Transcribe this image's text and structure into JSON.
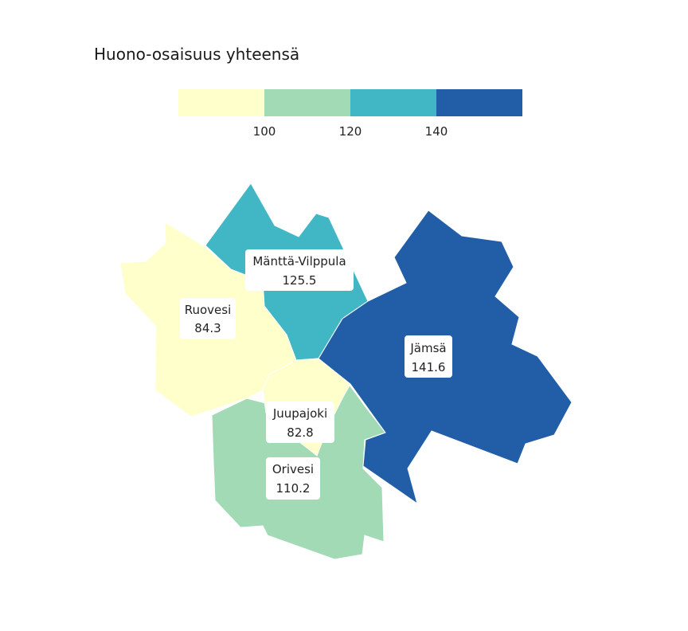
{
  "title": "Huono-osaisuus yhteensä",
  "legend": {
    "bins": [
      {
        "color": "#ffffcc"
      },
      {
        "color": "#a1dab4"
      },
      {
        "color": "#41b6c4"
      },
      {
        "color": "#225ea8"
      }
    ],
    "ticks": [
      "100",
      "120",
      "140"
    ]
  },
  "regions": [
    {
      "name": "Ruovesi",
      "value": "84.3",
      "color": "#ffffcc"
    },
    {
      "name": "Mänttä-Vilppula",
      "value": "125.5",
      "color": "#41b6c4"
    },
    {
      "name": "Jämsä",
      "value": "141.6",
      "color": "#225ea8"
    },
    {
      "name": "Juupajoki",
      "value": "82.8",
      "color": "#ffffcc"
    },
    {
      "name": "Orivesi",
      "value": "110.2",
      "color": "#a1dab4"
    }
  ]
}
